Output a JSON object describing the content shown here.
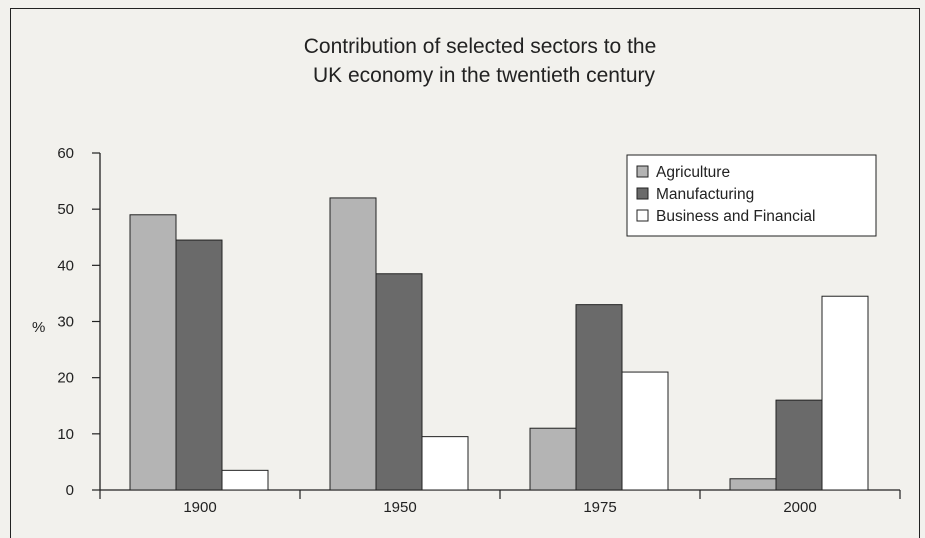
{
  "chart_data": {
    "type": "bar",
    "title_lines": [
      "Contribution of selected sectors to the",
      "UK economy in the twentieth century"
    ],
    "ylabel": "%",
    "xlabel": "",
    "categories": [
      "1900",
      "1950",
      "1975",
      "2000"
    ],
    "yticks": [
      "0",
      "10",
      "20",
      "30",
      "40",
      "50",
      "60"
    ],
    "ylim": [
      0,
      60
    ],
    "grid": false,
    "legend_position": "top-right",
    "series": [
      {
        "name": "Agriculture",
        "values": [
          49,
          52,
          11,
          2
        ],
        "color": "#b4b4b4"
      },
      {
        "name": "Manufacturing",
        "values": [
          44.5,
          38.5,
          33,
          16
        ],
        "color": "#6a6a6a"
      },
      {
        "name": "Business and Financial",
        "values": [
          3.5,
          9.5,
          21,
          34.5
        ],
        "color": "#ffffff"
      }
    ]
  }
}
